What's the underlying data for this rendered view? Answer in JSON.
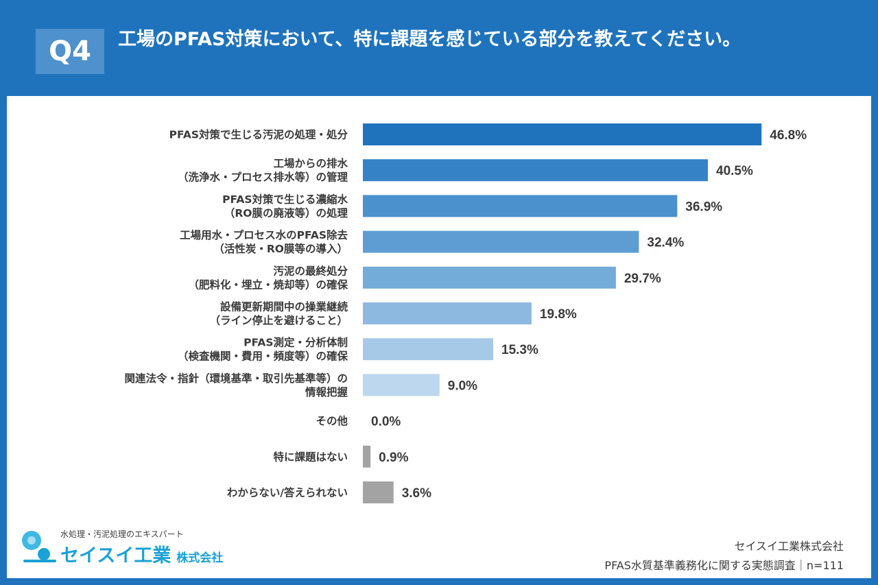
{
  "header": {
    "badge": "Q4",
    "question": "工場のPFAS対策において、特に課題を感じている部分を教えてください。"
  },
  "colors": {
    "frame": "#1f73bd",
    "badge": "#4f91cc",
    "gray_bar": "#a3a3a3"
  },
  "chart_data": {
    "type": "bar",
    "orientation": "horizontal",
    "unit": "%",
    "xlim": [
      0,
      50
    ],
    "categories": [
      [
        "PFAS対策で生じる汚泥の処理・処分"
      ],
      [
        "工場からの排水",
        "（洗浄水・プロセス排水等）の管理"
      ],
      [
        "PFAS対策で生じる濃縮水",
        "（RO膜の廃液等）の処理"
      ],
      [
        "工場用水・プロセス水のPFAS除去",
        "（活性炭・RO膜等の導入）"
      ],
      [
        "汚泥の最終処分",
        "（肥料化・埋立・焼却等）の確保"
      ],
      [
        "設備更新期間中の操業継続",
        "（ライン停止を避けること）"
      ],
      [
        "PFAS測定・分析体制",
        "（検査機関・費用・頻度等）の確保"
      ],
      [
        "関連法令・指針（環境基準・取引先基準等）の",
        "情報把握"
      ],
      [
        "その他"
      ],
      [
        "特に課題はない"
      ],
      [
        "わからない/答えられない"
      ]
    ],
    "values": [
      46.8,
      40.5,
      36.9,
      32.4,
      29.7,
      19.8,
      15.3,
      9.0,
      0.0,
      0.9,
      3.6
    ],
    "value_labels": [
      "46.8%",
      "40.5%",
      "36.9%",
      "32.4%",
      "29.7%",
      "19.8%",
      "15.3%",
      "9.0%",
      "0.0%",
      "0.9%",
      "3.6%"
    ],
    "bar_colors": [
      "#1f73bd",
      "#3583c6",
      "#4a91cd",
      "#5d9dd3",
      "#73abd9",
      "#8db9e0",
      "#a7c9e8",
      "#bcd7ee",
      "#a3a3a3",
      "#a3a3a3",
      "#a3a3a3"
    ]
  },
  "logo": {
    "tagline": "水処理・汚泥処理のエキスパート",
    "name": "セイスイ工業",
    "suffix": "株式会社"
  },
  "source": {
    "company": "セイスイ工業株式会社",
    "survey": "PFAS水質基準義務化に関する実態調査｜n=111"
  }
}
